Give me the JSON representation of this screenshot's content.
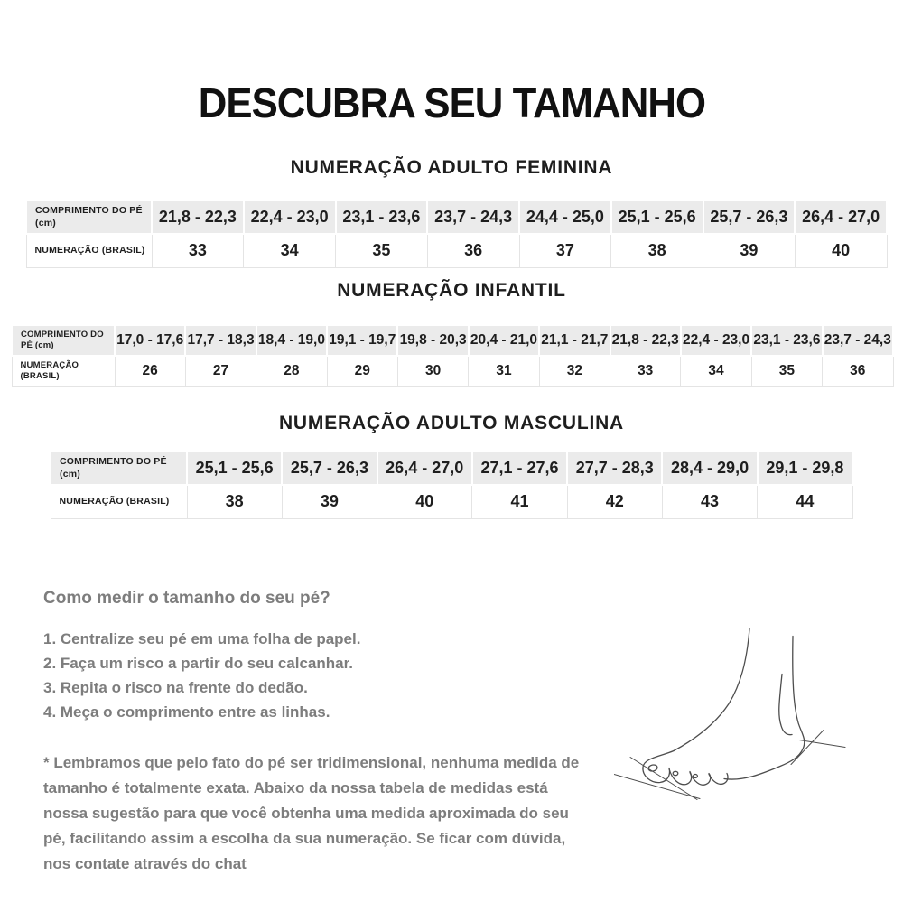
{
  "page_title": "DESCUBRA SEU TAMANHO",
  "size_tables": [
    {
      "title": "NUMERAÇÃO ADULTO FEMININA",
      "length_label": "COMPRIMENTO DO PÉ (cm)",
      "size_label": "NUMERAÇÃO (BRASIL)",
      "lengths": [
        "21,8 - 22,3",
        "22,4 - 23,0",
        "23,1 - 23,6",
        "23,7 - 24,3",
        "24,4 - 25,0",
        "25,1 - 25,6",
        "25,7 - 26,3",
        "26,4 - 27,0"
      ],
      "sizes": [
        "33",
        "34",
        "35",
        "36",
        "37",
        "38",
        "39",
        "40"
      ]
    },
    {
      "title": "NUMERAÇÃO INFANTIL",
      "length_label": "COMPRIMENTO DO PÉ (cm)",
      "size_label": "NUMERAÇÃO (BRASIL)",
      "lengths": [
        "17,0 - 17,6",
        "17,7 - 18,3",
        "18,4 - 19,0",
        "19,1 - 19,7",
        "19,8 - 20,3",
        "20,4 - 21,0",
        "21,1 - 21,7",
        "21,8 - 22,3",
        "22,4 - 23,0",
        "23,1 - 23,6",
        "23,7 - 24,3"
      ],
      "sizes": [
        "26",
        "27",
        "28",
        "29",
        "30",
        "31",
        "32",
        "33",
        "34",
        "35",
        "36"
      ]
    },
    {
      "title": "NUMERAÇÃO ADULTO MASCULINA",
      "length_label": "COMPRIMENTO DO PÉ (cm)",
      "size_label": "NUMERAÇÃO (BRASIL)",
      "lengths": [
        "25,1 - 25,6",
        "25,7 - 26,3",
        "26,4 - 27,0",
        "27,1 - 27,6",
        "27,7 - 28,3",
        "28,4 - 29,0",
        "29,1 - 29,8"
      ],
      "sizes": [
        "38",
        "39",
        "40",
        "41",
        "42",
        "43",
        "44"
      ]
    }
  ],
  "how_to": {
    "heading": "Como medir o tamanho do seu pé?",
    "steps": [
      "1. Centralize seu pé em uma folha de papel.",
      "2. Faça um risco a partir do seu calcanhar.",
      "3. Repita o risco na frente do dedão.",
      "4. Meça o comprimento entre as linhas."
    ],
    "note": "* Lembramos que pelo fato do pé ser tridimensional, nenhuma medida de tamanho é totalmente exata. Abaixo da nossa tabela de medidas está nossa sugestão para que você obtenha uma medida aproximada do seu pé, facilitando assim a escolha da sua numeração. Se ficar com dúvida, nos contate através do chat"
  },
  "colors": {
    "table_header_bg": "#ebebeb",
    "table_border": "#e4e4e4",
    "body_text": "#1e1e1e",
    "muted_text": "#7d7d7d"
  },
  "icons": {
    "foot_illustration": "line drawing of a bare foot with measuring lines at heel and toes"
  }
}
